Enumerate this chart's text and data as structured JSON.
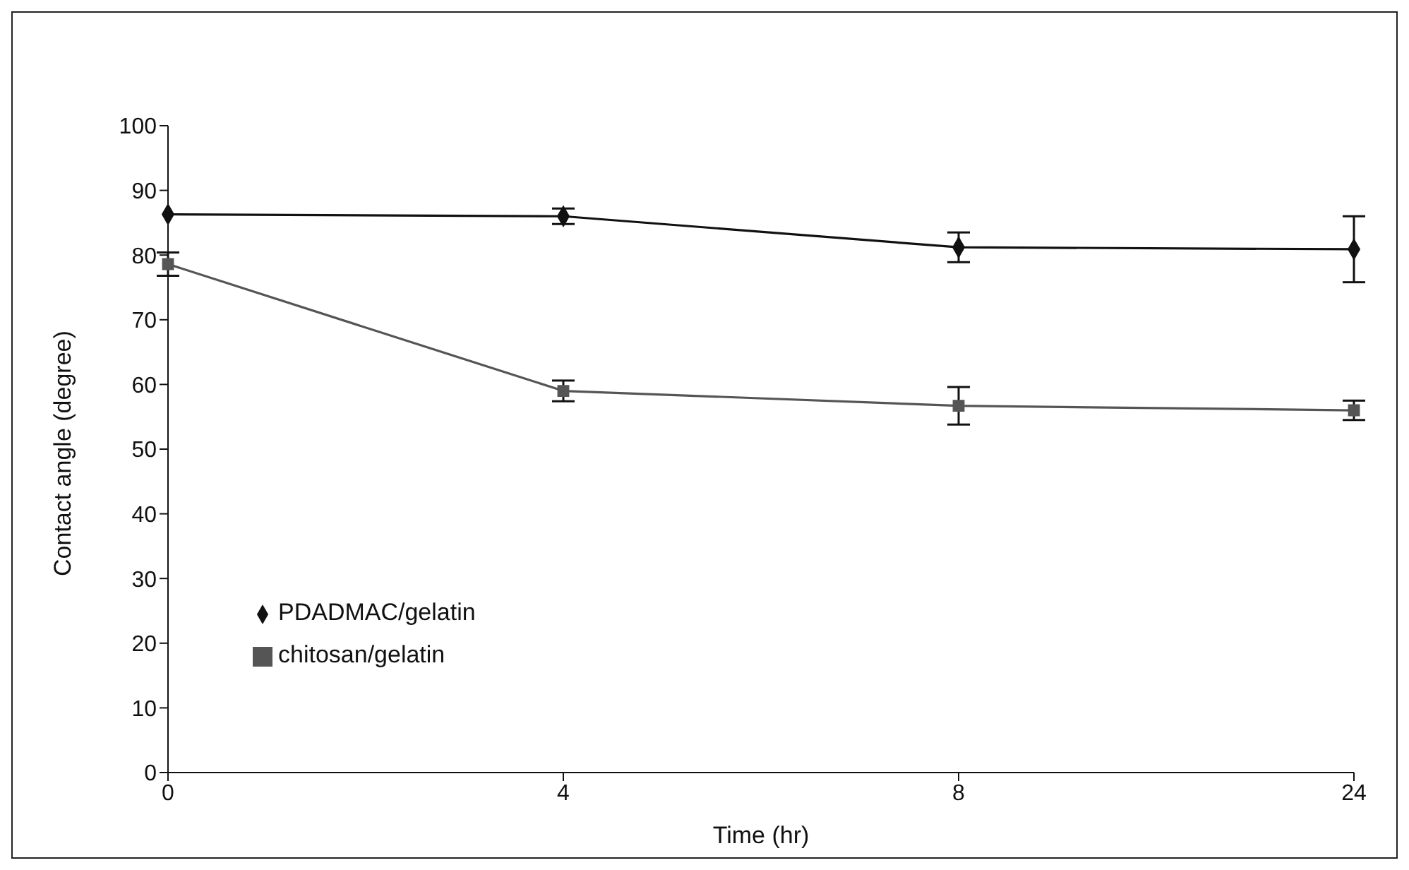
{
  "chart_data": {
    "type": "line",
    "xlabel": "Time (hr)",
    "ylabel": "Contact angle (degree)",
    "categories": [
      "0",
      "4",
      "8",
      "24"
    ],
    "series": [
      {
        "name": "PDADMAC/gelatin",
        "color": "#111111",
        "marker": "diamond",
        "line_style": "solid",
        "values": [
          86.3,
          86.0,
          81.2,
          80.9
        ],
        "errors": [
          null,
          1.2,
          2.3,
          5.1
        ]
      },
      {
        "name": "chitosan/gelatin",
        "color": "#555555",
        "marker": "square",
        "line_style": "solid",
        "values": [
          78.6,
          59.0,
          56.7,
          56.0
        ],
        "errors": [
          1.8,
          1.6,
          2.9,
          1.5
        ]
      }
    ],
    "ylim": [
      0,
      100
    ],
    "yticks": [
      0,
      10,
      20,
      30,
      40,
      50,
      60,
      70,
      80,
      90,
      100
    ],
    "grid": false,
    "legend": "bottom left"
  }
}
